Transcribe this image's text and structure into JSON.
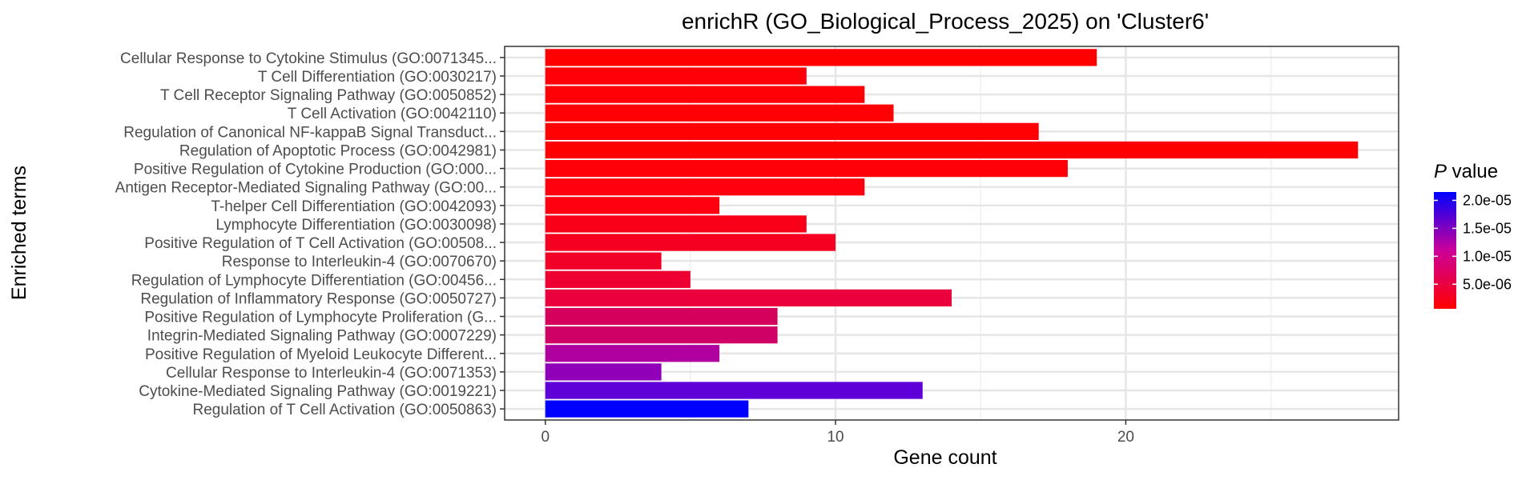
{
  "chart_data": {
    "type": "bar",
    "orientation": "horizontal",
    "title": "enrichR (GO_Biological_Process_2025) on 'Cluster6'",
    "xlabel": "Gene count",
    "ylabel": "Enriched terms",
    "xlim": [
      -1.4,
      29.4
    ],
    "xticks": [
      0,
      10,
      20
    ],
    "grid": true,
    "legend": {
      "title_italic": "P",
      "title_rest": " value",
      "position": "right",
      "tick_labels": [
        "2.0e-05",
        "1.5e-05",
        "1.0e-05",
        "5.0e-06"
      ],
      "tick_values": [
        2e-05,
        1.5e-05,
        1e-05,
        5e-06
      ],
      "range": [
        6e-07,
        2.15e-05
      ],
      "color_low": "#ff0000",
      "color_high": "#0000ff"
    },
    "categories": [
      "Cellular Response to Cytokine Stimulus (GO:0071345...",
      "T Cell Differentiation (GO:0030217)",
      "T Cell Receptor Signaling Pathway (GO:0050852)",
      "T Cell Activation (GO:0042110)",
      "Regulation of Canonical NF-kappaB Signal Transduct...",
      "Regulation of Apoptotic Process (GO:0042981)",
      "Positive Regulation of Cytokine Production (GO:000...",
      "Antigen Receptor-Mediated Signaling Pathway (GO:00...",
      "T-helper Cell Differentiation (GO:0042093)",
      "Lymphocyte Differentiation (GO:0030098)",
      "Positive Regulation of T Cell Activation (GO:00508...",
      "Response to Interleukin-4 (GO:0070670)",
      "Regulation of Lymphocyte Differentiation (GO:00456...",
      "Regulation of Inflammatory Response (GO:0050727)",
      "Positive Regulation of Lymphocyte Proliferation (G...",
      "Integrin-Mediated Signaling Pathway (GO:0007229)",
      "Positive Regulation of Myeloid Leukocyte Different...",
      "Cellular Response to Interleukin-4 (GO:0071353)",
      "Cytokine-Mediated Signaling Pathway (GO:0019221)",
      "Regulation of T Cell Activation (GO:0050863)"
    ],
    "values": [
      19,
      9,
      11,
      12,
      17,
      28,
      18,
      11,
      6,
      9,
      10,
      4,
      5,
      14,
      8,
      8,
      6,
      4,
      13,
      7
    ],
    "colors": [
      "#ff0000",
      "#ff0008",
      "#ff0006",
      "#ff0004",
      "#ff0003",
      "#ff0000",
      "#ff0009",
      "#ff000e",
      "#ff0010",
      "#f90018",
      "#f50020",
      "#f10028",
      "#ef0033",
      "#e9003d",
      "#d5005c",
      "#cf0066",
      "#b000a0",
      "#9000b8",
      "#6000d8",
      "#0000ff"
    ]
  }
}
